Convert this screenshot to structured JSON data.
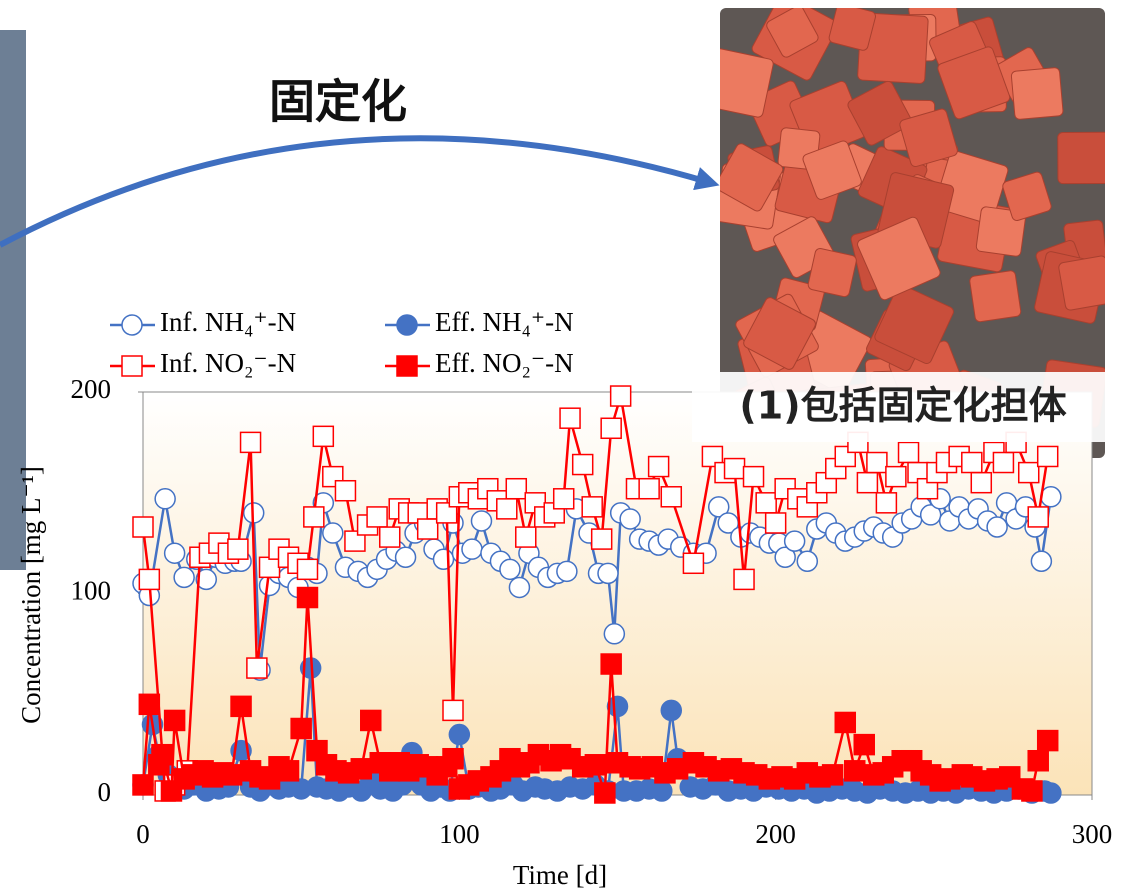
{
  "heading": "固定化",
  "photo_label": "(1)包括固定化担体",
  "chart_data": {
    "type": "line",
    "x_label": "Time [d]",
    "y_label": "Concentration [mg L⁻¹]",
    "xlim": [
      0,
      300
    ],
    "xticks": [
      0,
      100,
      200,
      300
    ],
    "ylim": [
      0,
      200
    ],
    "yticks": [
      0,
      100,
      200
    ],
    "series": [
      {
        "name": "Inf. NH₄⁺-N",
        "color": "#4472c4",
        "marker": "circle",
        "filled": false,
        "x": [
          0,
          2,
          7,
          10,
          13,
          17,
          20,
          23,
          26,
          29,
          31,
          35,
          37,
          40,
          43,
          46,
          49,
          52,
          55,
          57,
          60,
          64,
          68,
          71,
          74,
          77,
          80,
          83,
          86,
          89,
          92,
          95,
          98,
          101,
          104,
          107,
          110,
          113,
          116,
          119,
          122,
          125,
          128,
          131,
          134,
          137,
          141,
          144,
          147,
          149,
          151,
          154,
          157,
          160,
          163,
          166,
          170,
          174,
          178,
          182,
          185,
          189,
          192,
          195,
          198,
          201,
          203,
          206,
          210,
          213,
          216,
          219,
          222,
          225,
          228,
          231,
          234,
          237,
          240,
          243,
          246,
          249,
          252,
          255,
          258,
          261,
          264,
          267,
          270,
          273,
          276,
          279,
          282,
          284,
          287
        ],
        "values": [
          105,
          99,
          147,
          120,
          108,
          117,
          107,
          118,
          115,
          116,
          116,
          140,
          62,
          104,
          110,
          108,
          103,
          113,
          110,
          145,
          130,
          113,
          111,
          108,
          112,
          117,
          121,
          118,
          130,
          135,
          122,
          117,
          135,
          120,
          122,
          136,
          120,
          116,
          112,
          103,
          120,
          113,
          108,
          110,
          111,
          142,
          130,
          110,
          110,
          80,
          140,
          137,
          127,
          126,
          124,
          127,
          123,
          120,
          120,
          143,
          135,
          128,
          130,
          128,
          125,
          125,
          118,
          126,
          116,
          132,
          135,
          130,
          126,
          128,
          131,
          133,
          130,
          128,
          135,
          137,
          143,
          139,
          147,
          136,
          143,
          137,
          142,
          136,
          133,
          145,
          137,
          143,
          133,
          116,
          148
        ]
      },
      {
        "name": "Eff. NH₄⁺-N",
        "color": "#4472c4",
        "marker": "circle",
        "filled": true,
        "x": [
          0,
          3,
          5,
          8,
          10,
          13,
          16,
          20,
          24,
          27,
          31,
          34,
          37,
          40,
          43,
          46,
          50,
          53,
          55,
          58,
          62,
          65,
          69,
          72,
          75,
          79,
          82,
          85,
          88,
          91,
          94,
          97,
          100,
          103,
          106,
          110,
          113,
          117,
          120,
          124,
          127,
          131,
          135,
          139,
          143,
          147,
          150,
          152,
          156,
          160,
          164,
          167,
          169,
          173,
          177,
          181,
          185,
          189,
          193,
          197,
          201,
          205,
          209,
          213,
          217,
          221,
          225,
          229,
          233,
          237,
          241,
          245,
          249,
          253,
          257,
          261,
          265,
          269,
          273,
          277,
          281,
          285,
          287
        ],
        "values": [
          5,
          35,
          20,
          10,
          5,
          3,
          5,
          2,
          3,
          4,
          22,
          4,
          2,
          5,
          3,
          4,
          3,
          63,
          4,
          3,
          2,
          4,
          2,
          8,
          3,
          2,
          5,
          21,
          5,
          2,
          4,
          2,
          30,
          3,
          4,
          2,
          3,
          5,
          2,
          4,
          3,
          2,
          4,
          3,
          5,
          2,
          44,
          2,
          2,
          3,
          2,
          42,
          18,
          4,
          3,
          5,
          2,
          3,
          2,
          4,
          3,
          2,
          3,
          1,
          2,
          3,
          2,
          1,
          3,
          2,
          1,
          2,
          1,
          2,
          1,
          3,
          2,
          1,
          2,
          3,
          1,
          2,
          1
        ]
      },
      {
        "name": "Inf. NO₂⁻-N",
        "color": "#ff0000",
        "marker": "square",
        "filled": false,
        "x": [
          0,
          2,
          7,
          10,
          14,
          18,
          21,
          24,
          27,
          30,
          34,
          36,
          40,
          43,
          46,
          49,
          52,
          54,
          57,
          60,
          64,
          67,
          71,
          74,
          78,
          81,
          84,
          87,
          90,
          93,
          96,
          98,
          100,
          103,
          106,
          109,
          112,
          115,
          118,
          121,
          124,
          127,
          130,
          133,
          135,
          139,
          142,
          145,
          148,
          151,
          156,
          160,
          163,
          167,
          174,
          180,
          184,
          187,
          190,
          193,
          197,
          200,
          203,
          207,
          210,
          213,
          216,
          219,
          222,
          226,
          229,
          232,
          235,
          238,
          242,
          245,
          248,
          251,
          254,
          258,
          262,
          265,
          269,
          272,
          276,
          280,
          283,
          286
        ],
        "values": [
          133,
          107,
          2,
          5,
          12,
          118,
          120,
          125,
          120,
          122,
          175,
          63,
          113,
          122,
          118,
          115,
          112,
          138,
          178,
          158,
          151,
          126,
          134,
          138,
          128,
          142,
          140,
          140,
          132,
          142,
          140,
          42,
          148,
          150,
          147,
          152,
          146,
          142,
          152,
          128,
          145,
          138,
          140,
          147,
          187,
          164,
          143,
          127,
          182,
          198,
          152,
          152,
          163,
          148,
          115,
          168,
          160,
          162,
          107,
          158,
          145,
          135,
          152,
          147,
          143,
          150,
          155,
          162,
          168,
          175,
          155,
          165,
          145,
          158,
          170,
          160,
          152,
          160,
          165,
          168,
          165,
          155,
          170,
          165,
          175,
          160,
          138,
          168
        ]
      },
      {
        "name": "Eff. NO₂⁻-N",
        "color": "#ff0000",
        "marker": "square",
        "filled": true,
        "x": [
          0,
          2,
          5,
          6,
          9,
          10,
          13,
          16,
          19,
          22,
          25,
          28,
          31,
          34,
          37,
          40,
          43,
          46,
          50,
          52,
          55,
          58,
          61,
          65,
          69,
          72,
          75,
          78,
          81,
          84,
          87,
          90,
          93,
          96,
          98,
          100,
          103,
          106,
          110,
          113,
          116,
          119,
          122,
          125,
          129,
          132,
          135,
          139,
          143,
          146,
          148,
          150,
          154,
          157,
          161,
          165,
          169,
          174,
          178,
          182,
          186,
          190,
          194,
          198,
          202,
          206,
          210,
          214,
          218,
          222,
          225,
          228,
          231,
          234,
          237,
          240,
          243,
          246,
          249,
          252,
          255,
          259,
          262,
          266,
          270,
          274,
          278,
          281,
          283,
          286
        ],
        "values": [
          5,
          45,
          15,
          20,
          2,
          37,
          8,
          10,
          12,
          9,
          11,
          10,
          44,
          12,
          9,
          8,
          14,
          12,
          33,
          98,
          22,
          15,
          12,
          11,
          13,
          37,
          16,
          12,
          16,
          12,
          15,
          14,
          10,
          14,
          18,
          3,
          5,
          7,
          9,
          12,
          18,
          14,
          16,
          20,
          17,
          20,
          18,
          14,
          15,
          1,
          65,
          16,
          14,
          13,
          14,
          11,
          13,
          16,
          14,
          12,
          13,
          11,
          10,
          8,
          9,
          8,
          11,
          9,
          10,
          36,
          12,
          25,
          10,
          11,
          14,
          17,
          17,
          12,
          10,
          7,
          8,
          10,
          9,
          7,
          8,
          9,
          3,
          2,
          17,
          27
        ]
      }
    ]
  }
}
